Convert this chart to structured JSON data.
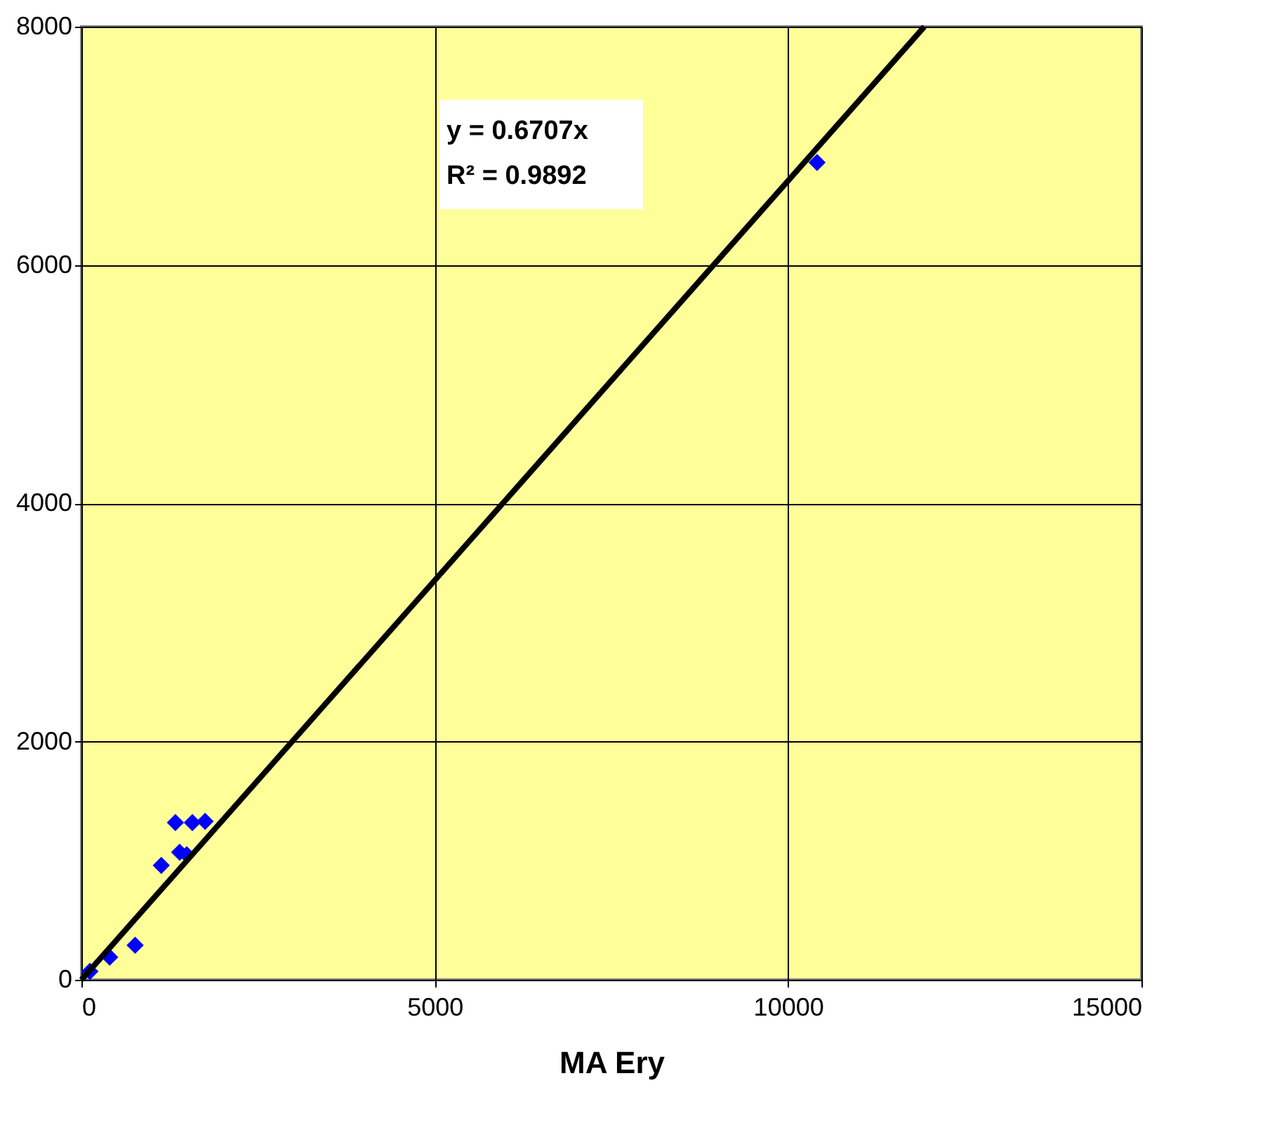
{
  "chart_data": {
    "type": "scatter",
    "xlabel": "MA Ery",
    "x": [
      120,
      400,
      760,
      1130,
      1330,
      1390,
      1490,
      1570,
      1750,
      10410
    ],
    "series": [
      {
        "color": "#0000ff",
        "marker": "diamond",
        "values": [
          70,
          190,
          290,
          960,
          1320,
          1070,
          1050,
          1320,
          1330,
          6860
        ]
      },
      {
        "type": "line",
        "line_style": "solid",
        "color": "#000000",
        "x": [
          0,
          11928
        ],
        "values": [
          0,
          8000
        ]
      }
    ],
    "annotations": [
      "y = 0.6707x",
      "R² = 0.9892"
    ],
    "xlim": [
      0,
      15000
    ],
    "xticks": [
      0,
      5000,
      10000,
      15000
    ],
    "ylim": [
      0,
      8000
    ],
    "yticks": [
      0,
      2000,
      4000,
      6000,
      8000
    ],
    "grid": true
  }
}
